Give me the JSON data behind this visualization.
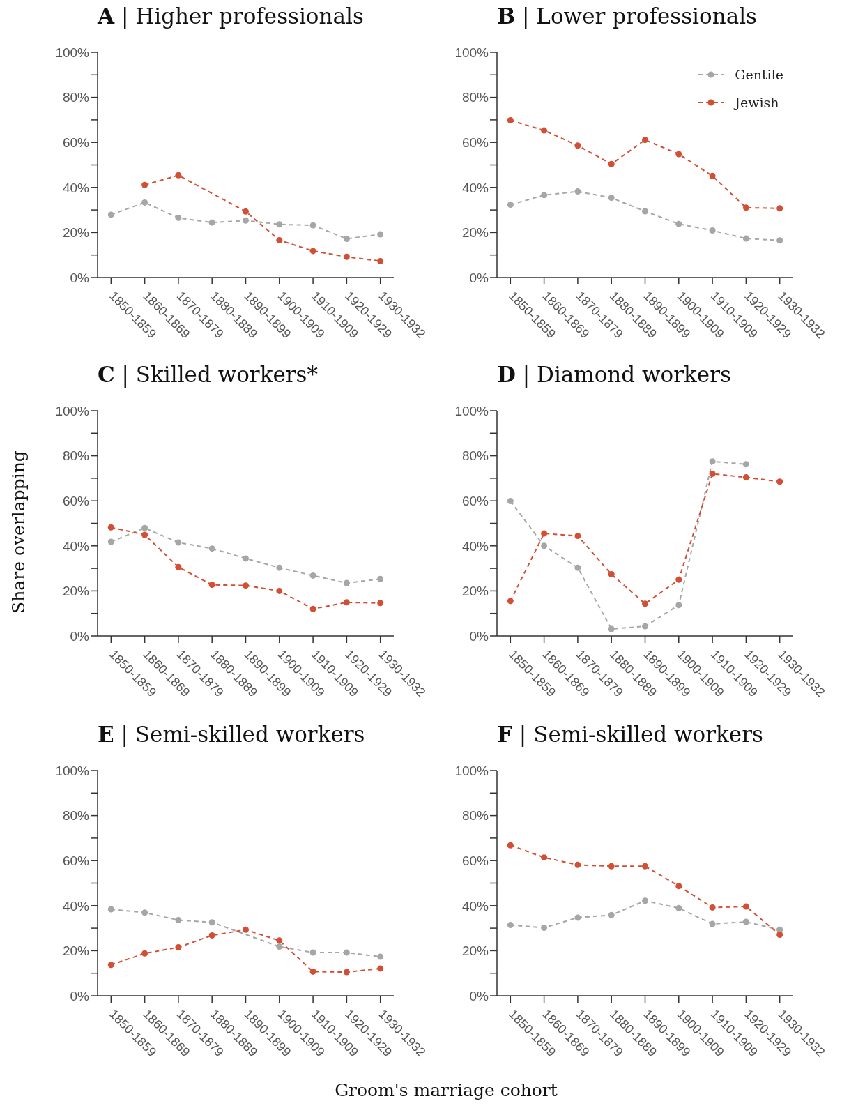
{
  "chart_data": [
    {
      "type": "line",
      "title": "A | Higher professionals",
      "categories": [
        "1850-1859",
        "1860-1869",
        "1870-1879",
        "1880-1889",
        "1890-1899",
        "1900-1909",
        "1910-1909",
        "1920-1929",
        "1930-1932"
      ],
      "series": [
        {
          "color": "#a6a6a6",
          "values": [
            27.9,
            33.3,
            26.5,
            24.4,
            25.3,
            23.6,
            23.2,
            17.2,
            19.2
          ]
        },
        {
          "color": "#d24f35",
          "values": [
            null,
            41.1,
            45.4,
            null,
            29.3,
            16.6,
            11.8,
            9.2,
            7.3
          ]
        }
      ],
      "ylim": [
        0,
        100
      ],
      "yticks": [
        {
          "value": 0,
          "label": "0%"
        },
        {
          "value": 10,
          "label": null
        },
        {
          "value": 20,
          "label": "20%"
        },
        {
          "value": 30,
          "label": null
        },
        {
          "value": 40,
          "label": "40%"
        },
        {
          "value": 50,
          "label": null
        },
        {
          "value": 60,
          "label": "60%"
        },
        {
          "value": 70,
          "label": null
        },
        {
          "value": 80,
          "label": "80%"
        },
        {
          "value": 90,
          "label": null
        },
        {
          "value": 100,
          "label": "100%"
        }
      ],
      "grid": false,
      "legend": false,
      "marker": "circle",
      "line_style": "dashed"
    },
    {
      "type": "line",
      "title": "B | Lower professionals",
      "categories": [
        "1850-1859",
        "1860-1869",
        "1870-1879",
        "1880-1889",
        "1890-1899",
        "1900-1909",
        "1910-1909",
        "1920-1929",
        "1930-1932"
      ],
      "series": [
        {
          "name": "Gentile",
          "color": "#a6a6a6",
          "values": [
            32.3,
            36.6,
            38.2,
            35.4,
            29.4,
            23.8,
            20.9,
            17.3,
            16.5
          ]
        },
        {
          "name": "Jewish",
          "color": "#d24f35",
          "values": [
            69.8,
            65.3,
            58.6,
            50.4,
            61.1,
            54.8,
            45.1,
            31.0,
            30.7
          ]
        }
      ],
      "ylim": [
        0,
        100
      ],
      "yticks": [
        {
          "value": 0,
          "label": "0%"
        },
        {
          "value": 10,
          "label": null
        },
        {
          "value": 20,
          "label": "20%"
        },
        {
          "value": 30,
          "label": null
        },
        {
          "value": 40,
          "label": "40%"
        },
        {
          "value": 50,
          "label": null
        },
        {
          "value": 60,
          "label": "60%"
        },
        {
          "value": 70,
          "label": null
        },
        {
          "value": 80,
          "label": "80%"
        },
        {
          "value": 90,
          "label": null
        },
        {
          "value": 100,
          "label": "100%"
        }
      ],
      "grid": false,
      "legend": "top right",
      "marker": "circle",
      "line_style": "dashed"
    },
    {
      "type": "line",
      "title": "C | Skilled workers*",
      "ylabel": "Share overlapping",
      "categories": [
        "1850-1859",
        "1860-1869",
        "1870-1879",
        "1880-1889",
        "1890-1899",
        "1900-1909",
        "1910-1909",
        "1920-1929",
        "1930-1932"
      ],
      "series": [
        {
          "color": "#a6a6a6",
          "values": [
            41.8,
            47.9,
            41.5,
            38.8,
            34.4,
            30.3,
            26.8,
            23.5,
            25.3
          ]
        },
        {
          "color": "#d24f35",
          "values": [
            48.2,
            44.9,
            30.6,
            22.7,
            22.4,
            20.0,
            12.0,
            14.9,
            14.6
          ]
        }
      ],
      "ylim": [
        0,
        100
      ],
      "yticks": [
        {
          "value": 0,
          "label": "0%"
        },
        {
          "value": 10,
          "label": null
        },
        {
          "value": 20,
          "label": "20%"
        },
        {
          "value": 30,
          "label": null
        },
        {
          "value": 40,
          "label": "40%"
        },
        {
          "value": 50,
          "label": null
        },
        {
          "value": 60,
          "label": "60%"
        },
        {
          "value": 70,
          "label": null
        },
        {
          "value": 80,
          "label": "80%"
        },
        {
          "value": 90,
          "label": null
        },
        {
          "value": 100,
          "label": "100%"
        }
      ],
      "grid": false,
      "legend": false,
      "marker": "circle",
      "line_style": "dashed"
    },
    {
      "type": "line",
      "title": "D | Diamond workers",
      "categories": [
        "1850-1859",
        "1860-1869",
        "1870-1879",
        "1880-1889",
        "1890-1899",
        "1900-1909",
        "1910-1909",
        "1920-1929",
        "1930-1932"
      ],
      "series": [
        {
          "color": "#a6a6a6",
          "values": [
            59.9,
            40.0,
            30.3,
            3.1,
            4.3,
            13.7,
            77.5,
            76.2,
            null
          ]
        },
        {
          "color": "#d24f35",
          "values": [
            15.5,
            45.5,
            44.4,
            27.4,
            14.3,
            25.0,
            72.0,
            70.4,
            68.5
          ]
        }
      ],
      "ylim": [
        0,
        100
      ],
      "yticks": [
        {
          "value": 0,
          "label": "0%"
        },
        {
          "value": 10,
          "label": null
        },
        {
          "value": 20,
          "label": "20%"
        },
        {
          "value": 30,
          "label": null
        },
        {
          "value": 40,
          "label": "40%"
        },
        {
          "value": 50,
          "label": null
        },
        {
          "value": 60,
          "label": "60%"
        },
        {
          "value": 70,
          "label": null
        },
        {
          "value": 80,
          "label": "80%"
        },
        {
          "value": 90,
          "label": null
        },
        {
          "value": 100,
          "label": "100%"
        }
      ],
      "grid": false,
      "legend": false,
      "marker": "circle",
      "line_style": "dashed"
    },
    {
      "type": "line",
      "title": "E | Semi-skilled workers",
      "xlabel": "Groom's marriage cohort",
      "categories": [
        "1850-1859",
        "1860-1869",
        "1870-1879",
        "1880-1889",
        "1890-1899",
        "1900-1909",
        "1910-1909",
        "1920-1929",
        "1930-1932"
      ],
      "series": [
        {
          "color": "#a6a6a6",
          "values": [
            38.4,
            36.9,
            33.6,
            32.6,
            null,
            21.8,
            19.2,
            19.2,
            17.3
          ]
        },
        {
          "color": "#d24f35",
          "values": [
            13.7,
            18.8,
            21.5,
            26.8,
            29.3,
            24.5,
            10.7,
            10.5,
            12.1
          ]
        }
      ],
      "ylim": [
        0,
        100
      ],
      "yticks": [
        {
          "value": 0,
          "label": "0%"
        },
        {
          "value": 10,
          "label": null
        },
        {
          "value": 20,
          "label": "20%"
        },
        {
          "value": 30,
          "label": null
        },
        {
          "value": 40,
          "label": "40%"
        },
        {
          "value": 50,
          "label": null
        },
        {
          "value": 60,
          "label": "60%"
        },
        {
          "value": 70,
          "label": null
        },
        {
          "value": 80,
          "label": "80%"
        },
        {
          "value": 90,
          "label": null
        },
        {
          "value": 100,
          "label": "100%"
        }
      ],
      "grid": false,
      "legend": false,
      "marker": "circle",
      "line_style": "dashed"
    },
    {
      "type": "line",
      "title": "F | Semi-skilled workers",
      "categories": [
        "1850-1859",
        "1860-1869",
        "1870-1879",
        "1880-1889",
        "1890-1899",
        "1900-1909",
        "1910-1909",
        "1920-1929",
        "1930-1932"
      ],
      "series": [
        {
          "color": "#a6a6a6",
          "values": [
            31.4,
            30.2,
            34.7,
            35.8,
            42.2,
            38.9,
            31.9,
            32.8,
            29.3
          ]
        },
        {
          "color": "#d24f35",
          "values": [
            66.8,
            61.4,
            58.1,
            57.5,
            57.5,
            48.7,
            39.2,
            39.6,
            27.1
          ]
        }
      ],
      "ylim": [
        0,
        100
      ],
      "yticks": [
        {
          "value": 0,
          "label": "0%"
        },
        {
          "value": 10,
          "label": null
        },
        {
          "value": 20,
          "label": "20%"
        },
        {
          "value": 30,
          "label": null
        },
        {
          "value": 40,
          "label": "40%"
        },
        {
          "value": 50,
          "label": null
        },
        {
          "value": 60,
          "label": "60%"
        },
        {
          "value": 70,
          "label": null
        },
        {
          "value": 80,
          "label": "80%"
        },
        {
          "value": 90,
          "label": null
        },
        {
          "value": 100,
          "label": "100%"
        }
      ],
      "grid": false,
      "legend": false,
      "marker": "circle",
      "line_style": "dashed"
    }
  ]
}
